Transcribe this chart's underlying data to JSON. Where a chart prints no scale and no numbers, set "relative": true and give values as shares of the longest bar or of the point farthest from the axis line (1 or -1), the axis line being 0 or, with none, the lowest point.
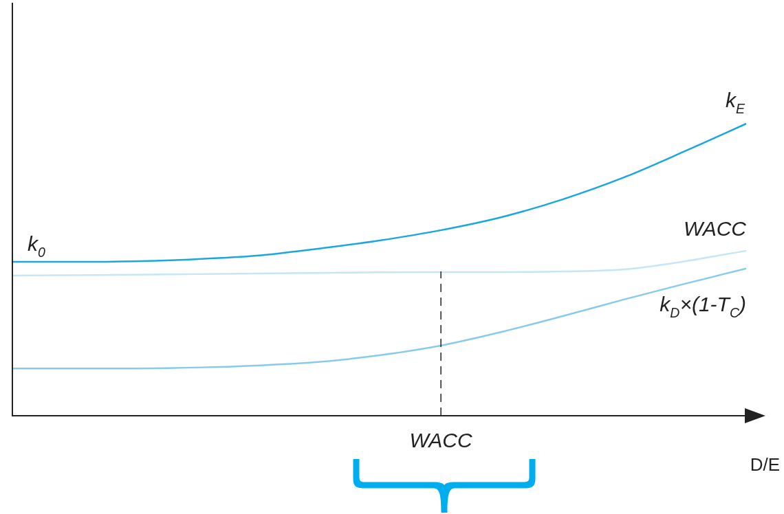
{
  "chart_data": {
    "type": "line",
    "relative": true,
    "xlabel": "D/E",
    "categories": [
      null,
      null,
      null,
      null,
      null,
      null,
      null,
      null,
      null,
      null,
      null,
      null,
      null
    ],
    "series": [
      {
        "name": "k$_{E}$",
        "color": "#1aa7df",
        "values": [
          0.527,
          0.527,
          0.529,
          0.536,
          0.548,
          0.572,
          0.6,
          0.635,
          0.68,
          0.741,
          0.816,
          0.906,
          1
        ]
      },
      {
        "name": "WACC",
        "color": "#c6e6f6",
        "values": [
          0.48,
          0.481,
          0.483,
          0.485,
          0.487,
          0.489,
          0.491,
          0.492,
          0.492,
          0.494,
          0.501,
          0.529,
          0.565
        ]
      },
      {
        "name": "k$_{D}$×(1-T$_{C}$)",
        "color": "#86cbec",
        "values": [
          0.162,
          0.162,
          0.162,
          0.165,
          0.172,
          0.184,
          0.207,
          0.24,
          0.287,
          0.341,
          0.398,
          0.452,
          0.504
        ]
      }
    ],
    "annotations": [
      {
        "text": "k$_{0}$",
        "y": 0.527
      },
      "WACC"
    ],
    "marker": "none",
    "line_style": "solid",
    "grid": false,
    "legend": false,
    "tick_labels": false
  }
}
